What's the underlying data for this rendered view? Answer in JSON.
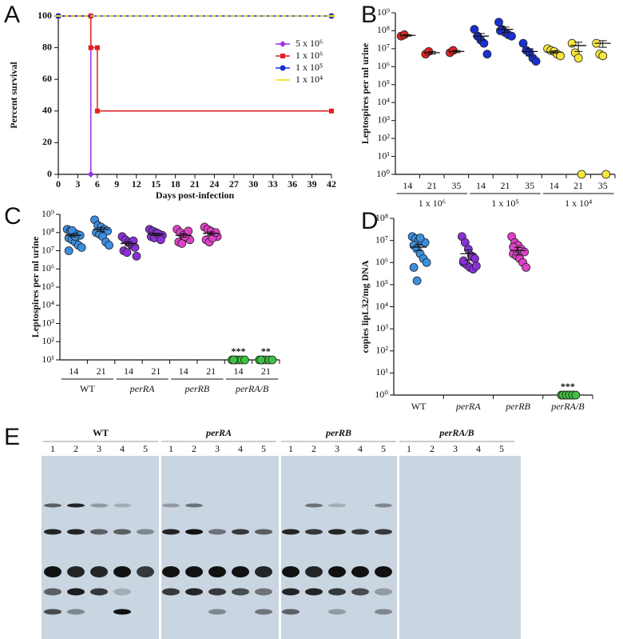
{
  "chart_data": [
    {
      "type": "line",
      "panel": "A",
      "xlabel": "Days post-infection",
      "ylabel": "Percent survival",
      "xlim": [
        0,
        42
      ],
      "xticks": [
        0,
        3,
        6,
        9,
        12,
        15,
        18,
        21,
        24,
        27,
        30,
        33,
        36,
        39,
        42
      ],
      "ylim": [
        0,
        100
      ],
      "yticks": [
        0,
        20,
        40,
        60,
        80,
        100
      ],
      "legend": "right",
      "series": [
        {
          "name": "5 x 10⁶",
          "color": "#9b30e8",
          "marker": "diamond",
          "x": [
            0,
            5,
            5
          ],
          "values": [
            100,
            100,
            0
          ]
        },
        {
          "name": "1 x 10⁶",
          "color": "#e02020",
          "marker": "square",
          "x": [
            0,
            5,
            5,
            6,
            6,
            42
          ],
          "values": [
            100,
            100,
            80,
            80,
            40,
            40
          ]
        },
        {
          "name": "1 x 10⁵",
          "color": "#1a2fd0",
          "marker": "circle",
          "x": [
            0,
            42
          ],
          "values": [
            100,
            100
          ]
        },
        {
          "name": "1 x 10⁴",
          "color": "#f0e020",
          "marker": "dash",
          "dashed": true,
          "x": [
            0,
            42
          ],
          "values": [
            100,
            100
          ]
        }
      ]
    },
    {
      "type": "dot",
      "panel": "B",
      "ylabel": "Leptospires per ml urine",
      "log_y": true,
      "ylim": [
        1,
        1000000000
      ],
      "yticks": [
        {
          "value": 1,
          "label": "10⁰"
        },
        {
          "value": 10,
          "label": "10¹"
        },
        {
          "value": 100,
          "label": "10²"
        },
        {
          "value": 1000,
          "label": "10³"
        },
        {
          "value": 10000,
          "label": "10⁴"
        },
        {
          "value": 100000,
          "label": "10⁵"
        },
        {
          "value": 1000000,
          "label": "10⁶"
        },
        {
          "value": 10000000,
          "label": "10⁷"
        },
        {
          "value": 100000000,
          "label": "10⁸"
        },
        {
          "value": 1000000000,
          "label": "10⁹"
        }
      ],
      "categories": [
        "14",
        "21",
        "35",
        "14",
        "21",
        "35",
        "14",
        "21",
        "35"
      ],
      "groups": [
        "1 x 10⁶",
        "1 x 10⁵",
        "1 x 10⁴"
      ],
      "colors": [
        "#e02020",
        "#e02020",
        "#e02020",
        "#1a2fd0",
        "#1a2fd0",
        "#1a2fd0",
        "#f5e63a",
        "#f5e63a",
        "#f5e63a"
      ],
      "points": [
        [
          50000000,
          60000000
        ],
        [
          5000000,
          7000000
        ],
        [
          6000000,
          8000000
        ],
        [
          120000000,
          50000000,
          30000000,
          20000000,
          5000000
        ],
        [
          300000000,
          120000000,
          80000000,
          60000000,
          50000000,
          100000000
        ],
        [
          20000000,
          8000000,
          6000000,
          3000000,
          2000000
        ],
        [
          10000000,
          8000000,
          7000000,
          5000000,
          4000000
        ],
        [
          20000000,
          6000000,
          3000000,
          1
        ],
        [
          20000000,
          5000000,
          4000000,
          1
        ]
      ],
      "means": [
        55000000,
        6000000,
        7000000,
        50000000,
        120000000,
        7000000,
        6500000,
        15000000,
        20000000
      ],
      "errors": [
        5000000,
        1000000,
        1000000,
        20000000,
        40000000,
        3000000,
        1000000,
        8000000,
        8000000
      ]
    },
    {
      "type": "dot",
      "panel": "C",
      "ylabel": "Leptospires per ml urine",
      "log_y": true,
      "ylim": [
        10,
        1000000000
      ],
      "yticks": [
        {
          "value": 10,
          "label": "10¹"
        },
        {
          "value": 100,
          "label": "10²"
        },
        {
          "value": 1000,
          "label": "10³"
        },
        {
          "value": 10000,
          "label": "10⁴"
        },
        {
          "value": 100000,
          "label": "10⁵"
        },
        {
          "value": 1000000,
          "label": "10⁶"
        },
        {
          "value": 10000000,
          "label": "10⁷"
        },
        {
          "value": 100000000,
          "label": "10⁸"
        },
        {
          "value": 1000000000,
          "label": "10⁹"
        }
      ],
      "categories": [
        "14",
        "21",
        "14",
        "21",
        "14",
        "21",
        "14",
        "21"
      ],
      "groups": [
        "WT",
        "perRA",
        "perRB",
        "perRA/B"
      ],
      "colors": [
        "#3a8fe0",
        "#3a8fe0",
        "#8a30d8",
        "#8a30d8",
        "#e040c8",
        "#e040c8",
        "#40c040",
        "#40c040"
      ],
      "points": [
        [
          150000000,
          120000000,
          100000000,
          80000000,
          70000000,
          50000000,
          40000000,
          30000000,
          20000000,
          15000000,
          10000000,
          130000000,
          60000000
        ],
        [
          500000000,
          250000000,
          200000000,
          150000000,
          120000000,
          100000000,
          80000000,
          60000000,
          30000000,
          20000000
        ],
        [
          60000000,
          40000000,
          30000000,
          20000000,
          15000000,
          10000000,
          8000000,
          25000000,
          35000000,
          5000000
        ],
        [
          150000000,
          120000000,
          100000000,
          80000000,
          70000000,
          60000000,
          50000000,
          90000000,
          40000000
        ],
        [
          150000000,
          100000000,
          70000000,
          50000000,
          40000000,
          30000000,
          25000000,
          60000000,
          120000000
        ],
        [
          200000000,
          150000000,
          120000000,
          80000000,
          60000000,
          40000000,
          30000000,
          50000000,
          100000000
        ],
        [
          10,
          10,
          10,
          10,
          10,
          10
        ],
        [
          10,
          10,
          10,
          10,
          10,
          10
        ]
      ],
      "means": [
        70000000,
        150000000,
        25000000,
        80000000,
        70000000,
        90000000,
        null,
        null
      ],
      "errors": [
        12000000,
        40000000,
        6000000,
        12000000,
        15000000,
        18000000,
        null,
        null
      ],
      "annotations": [
        null,
        null,
        null,
        null,
        null,
        null,
        "***",
        "**"
      ]
    },
    {
      "type": "dot",
      "panel": "D",
      "ylabel": "copies lipL32/mg DNA",
      "log_y": true,
      "ylim": [
        1,
        100000000
      ],
      "yticks": [
        {
          "value": 1,
          "label": "10⁰"
        },
        {
          "value": 10,
          "label": "10¹"
        },
        {
          "value": 100,
          "label": "10²"
        },
        {
          "value": 1000,
          "label": "10³"
        },
        {
          "value": 10000,
          "label": "10⁴"
        },
        {
          "value": 100000,
          "label": "10⁵"
        },
        {
          "value": 1000000,
          "label": "10⁶"
        },
        {
          "value": 10000000,
          "label": "10⁷"
        },
        {
          "value": 100000000,
          "label": "10⁸"
        }
      ],
      "categories": [
        "WT",
        "perRA",
        "perRB",
        "perRA/B"
      ],
      "colors": [
        "#3a8fe0",
        "#8a30d8",
        "#e040c8",
        "#40c040"
      ],
      "points": [
        [
          15000000,
          12000000,
          10000000,
          9000000,
          8000000,
          6000000,
          4000000,
          2500000,
          1500000,
          1000000,
          600000,
          150000,
          13000000
        ],
        [
          15000000,
          8000000,
          4000000,
          2000000,
          1500000,
          1000000,
          800000,
          600000,
          500000,
          700000,
          1200000
        ],
        [
          15000000,
          8000000,
          6000000,
          4000000,
          3000000,
          2500000,
          2000000,
          1500000,
          1000000,
          600000,
          5000000
        ],
        [
          1,
          1,
          1,
          1,
          1,
          1,
          1,
          1,
          1,
          1
        ]
      ],
      "means": [
        5000000,
        2500000,
        3500000,
        null
      ],
      "errors": [
        1500000,
        1200000,
        1300000,
        null
      ],
      "annotations": [
        null,
        null,
        null,
        "***"
      ]
    }
  ],
  "blot": {
    "panel": "E",
    "groups": [
      "WT",
      "perRA",
      "perRB",
      "perRA/B"
    ],
    "lanes": [
      "1",
      "2",
      "3",
      "4",
      "5"
    ]
  }
}
